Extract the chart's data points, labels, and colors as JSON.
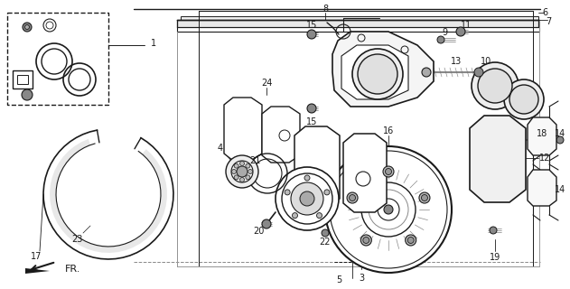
{
  "fig_width": 6.31,
  "fig_height": 3.2,
  "dpi": 100,
  "bg": "#ffffff",
  "lc": "#1a1a1a",
  "lw_thick": 1.2,
  "lw_med": 0.8,
  "lw_thin": 0.5,
  "label_fs": 7,
  "annotation_fs": 6.5
}
